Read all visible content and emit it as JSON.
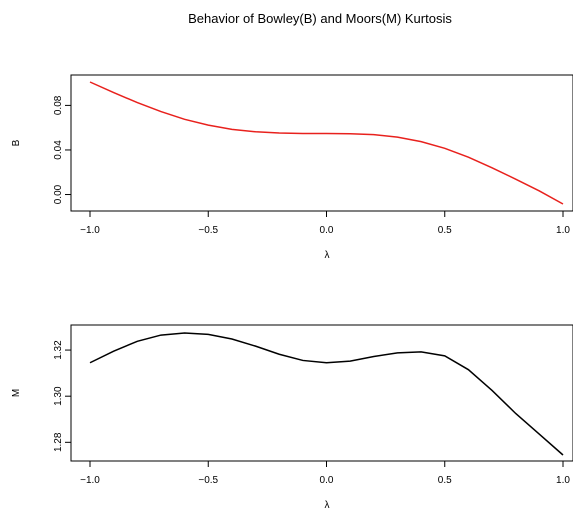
{
  "title": "Behavior of Bowley(B) and Moors(M) Kurtosis",
  "chart_data": [
    {
      "type": "line",
      "xlabel": "λ",
      "ylabel": "B",
      "xlim": [
        -1.0,
        1.0
      ],
      "ylim": [
        -0.0085,
        0.101
      ],
      "x_ticks": [
        -1.0,
        -0.5,
        0.0,
        0.5,
        1.0
      ],
      "x_tick_labels": [
        "−1.0",
        "−0.5",
        "0.0",
        "0.5",
        "1.0"
      ],
      "y_ticks": [
        0.0,
        0.04,
        0.08
      ],
      "y_tick_labels": [
        "0.00",
        "0.04",
        "0.08"
      ],
      "grid": false,
      "series": [
        {
          "color": "#e8211d",
          "x": [
            -1.0,
            -0.9,
            -0.8,
            -0.7,
            -0.6,
            -0.5,
            -0.4,
            -0.3,
            -0.2,
            -0.1,
            0.0,
            0.1,
            0.2,
            0.3,
            0.4,
            0.5,
            0.6,
            0.7,
            0.8,
            0.9,
            1.0
          ],
          "y": [
            0.101,
            0.0915,
            0.0825,
            0.0745,
            0.0675,
            0.0623,
            0.0585,
            0.0563,
            0.0552,
            0.0548,
            0.0548,
            0.0546,
            0.0538,
            0.0515,
            0.0475,
            0.0415,
            0.0335,
            0.024,
            0.0138,
            0.0032,
            -0.0085
          ]
        }
      ]
    },
    {
      "type": "line",
      "xlabel": "λ",
      "ylabel": "M",
      "xlim": [
        -1.0,
        1.0
      ],
      "ylim": [
        1.2745,
        1.3274
      ],
      "x_ticks": [
        -1.0,
        -0.5,
        0.0,
        0.5,
        1.0
      ],
      "x_tick_labels": [
        "−1.0",
        "−0.5",
        "0.0",
        "0.5",
        "1.0"
      ],
      "y_ticks": [
        1.28,
        1.3,
        1.32
      ],
      "y_tick_labels": [
        "1.28",
        "1.30",
        "1.32"
      ],
      "grid": false,
      "series": [
        {
          "color": "#000000",
          "x": [
            -1.0,
            -0.9,
            -0.8,
            -0.7,
            -0.6,
            -0.5,
            -0.4,
            -0.3,
            -0.2,
            -0.1,
            0.0,
            0.1,
            0.2,
            0.3,
            0.4,
            0.5,
            0.6,
            0.7,
            0.8,
            0.9,
            1.0
          ],
          "y": [
            1.3145,
            1.3195,
            1.3238,
            1.3265,
            1.3274,
            1.3268,
            1.3248,
            1.3217,
            1.3182,
            1.3155,
            1.3145,
            1.3152,
            1.3172,
            1.3188,
            1.3192,
            1.3175,
            1.3115,
            1.3025,
            1.2925,
            1.2835,
            1.2745
          ]
        }
      ]
    }
  ]
}
